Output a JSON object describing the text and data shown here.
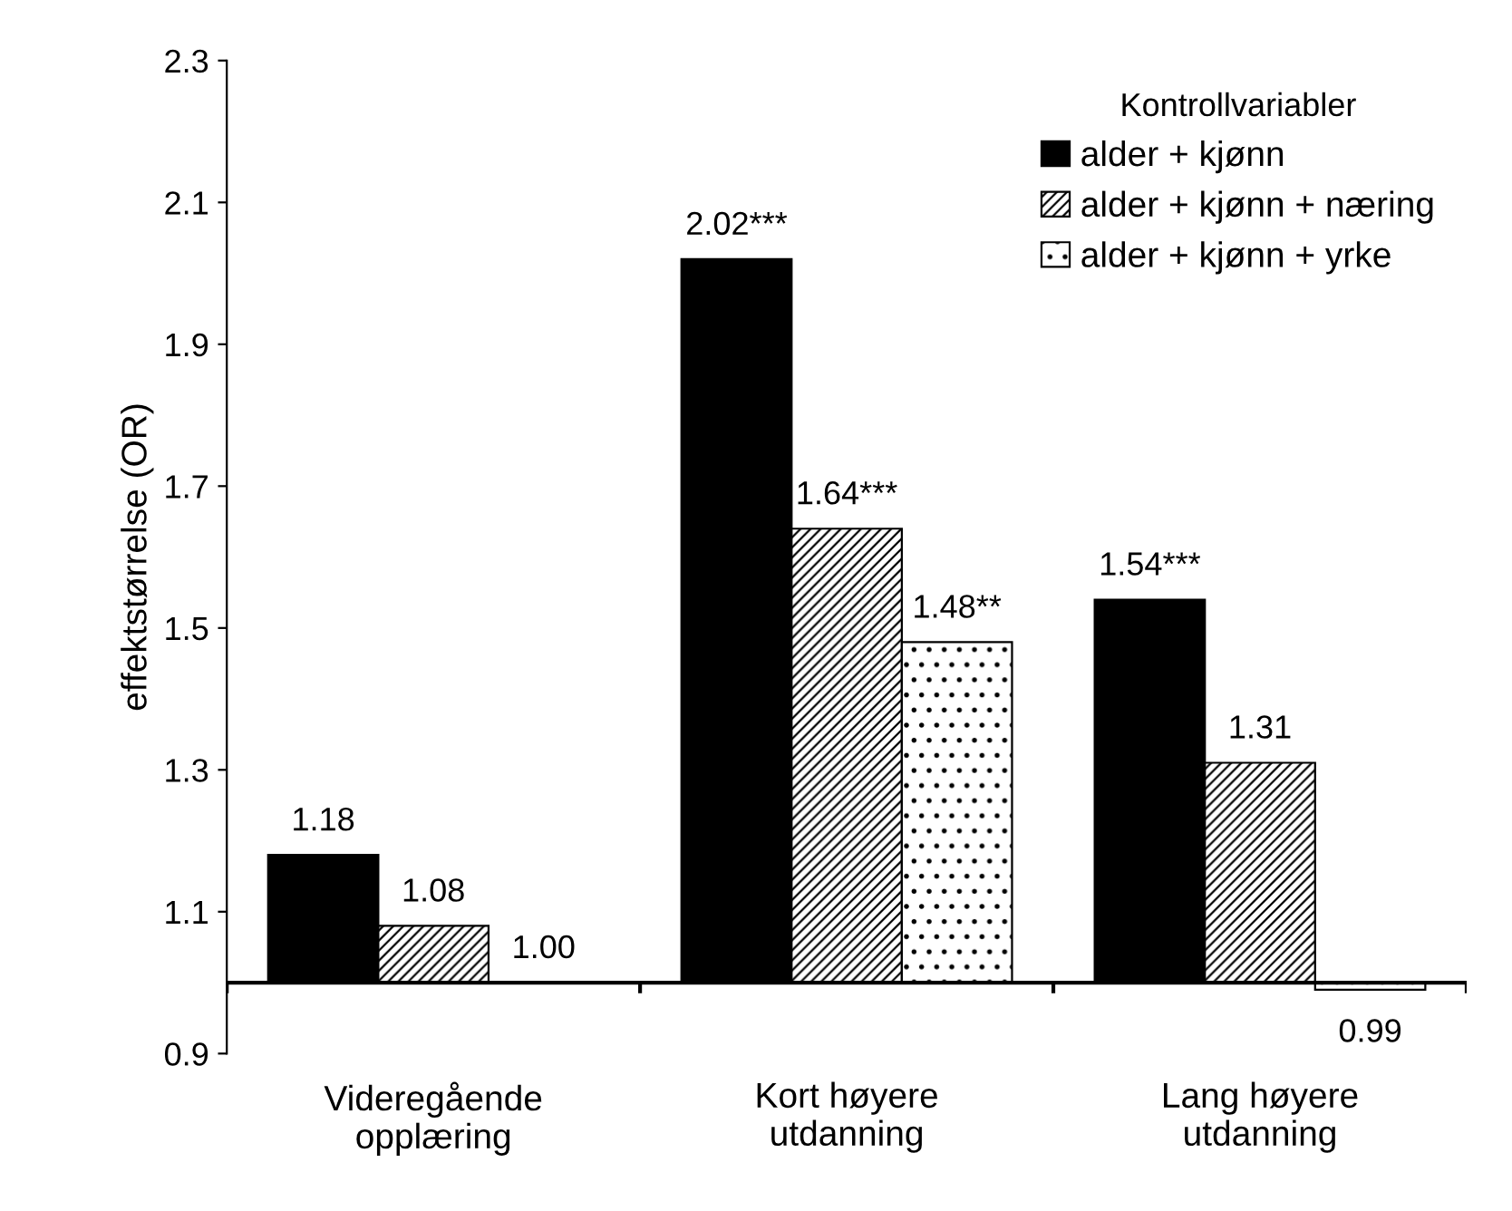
{
  "chart_data": {
    "type": "bar",
    "ylabel": "effektstørrelse (OR)",
    "legend_title": "Kontrollvariabler",
    "categories": [
      "Videregående\nopplæring",
      "Kort høyere\nutdanning",
      "Lang høyere\nutdanning"
    ],
    "series": [
      {
        "name": "alder + kjønn",
        "color": "#000000",
        "base": [
          1,
          1,
          1
        ],
        "values": [
          0.18,
          1.02,
          0.54
        ],
        "value_labels": [
          "1.18",
          "2.02***",
          "1.54***"
        ]
      },
      {
        "name": "alder + kjønn + næring",
        "color": "#000000",
        "base": [
          1,
          1,
          1
        ],
        "values": [
          0.08,
          0.64,
          0.31
        ],
        "value_labels": [
          "1.08",
          "1.64***",
          "1.31"
        ]
      },
      {
        "name": "alder + kjønn + yrke",
        "color": "#000000",
        "base": [
          1,
          1,
          1
        ],
        "values": [
          0.0,
          0.48,
          -0.01
        ],
        "value_labels": [
          "1.00",
          "1.48**",
          "0.99"
        ]
      }
    ],
    "ylim": [
      0.9,
      2.3
    ],
    "yticks": [
      0.9,
      1.1,
      1.3,
      1.5,
      1.7,
      1.9,
      2.1,
      2.3
    ],
    "ref_lines": [
      {
        "axis": "y",
        "value": 1,
        "color": "#000000"
      }
    ],
    "grid": false,
    "legend": "top right"
  }
}
